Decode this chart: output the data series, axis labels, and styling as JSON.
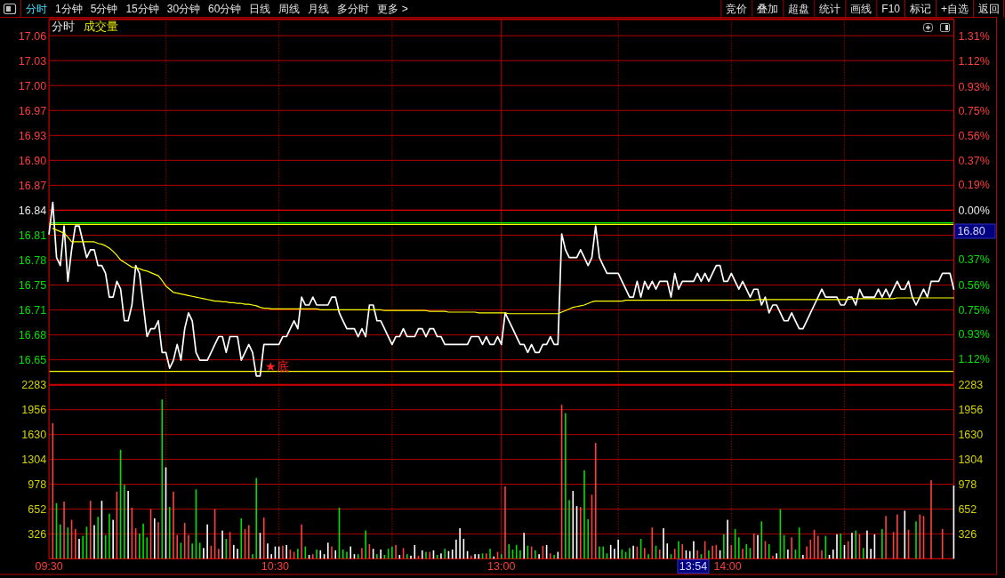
{
  "chart_data": [
    {
      "type": "line",
      "title": "分时",
      "annotations": [
        "分时",
        "1分钟",
        "5分钟",
        "15分钟",
        "30分钟",
        "60分钟",
        "日线",
        "周线",
        "月线",
        "多分时",
        "更多 >",
        "竞价",
        "叠加",
        "超盘",
        "统计",
        "画线",
        "F10",
        "标记",
        "+自选",
        "返回",
        "16.80",
        "★底"
      ],
      "categories": [
        null,
        null,
        null,
        null,
        null,
        null,
        null,
        null,
        null,
        null,
        null,
        null,
        null,
        null,
        null,
        null,
        null,
        null,
        null,
        null,
        null,
        null,
        null,
        null,
        null,
        null,
        null,
        null,
        null,
        null,
        null,
        null,
        null,
        null,
        null,
        null,
        null,
        null,
        null,
        null,
        null,
        null,
        null,
        null,
        null,
        null,
        null,
        null,
        null,
        null,
        null,
        null,
        null,
        null,
        null,
        null,
        null,
        null,
        null,
        null,
        null,
        null,
        null,
        null,
        null,
        null,
        null,
        null,
        null,
        null,
        null,
        null,
        null,
        null,
        null,
        null,
        null,
        null,
        null,
        null,
        null,
        null,
        null,
        null,
        null,
        null,
        null,
        null,
        null,
        null,
        null,
        null,
        null,
        null,
        null,
        null,
        null,
        null,
        null,
        null,
        null,
        null,
        null,
        null,
        null,
        null,
        null,
        null,
        null,
        null,
        null,
        null,
        null,
        null,
        null,
        null,
        null,
        null,
        null,
        null,
        null,
        null,
        null,
        null,
        null,
        null,
        null,
        null,
        null,
        null,
        null,
        null,
        null,
        null,
        null,
        null,
        null,
        null,
        null,
        null,
        null,
        null,
        null,
        null,
        null,
        null,
        null,
        null,
        null,
        null,
        null,
        null,
        null,
        null,
        null,
        null,
        null,
        null,
        null,
        null,
        null,
        null,
        null,
        null,
        null,
        null,
        null,
        null,
        null,
        null,
        null,
        null,
        null,
        null,
        null,
        null,
        null,
        null,
        null,
        null,
        null,
        null,
        null,
        null,
        null,
        null,
        null,
        null,
        null,
        null,
        null,
        null,
        null,
        null,
        null,
        null,
        null,
        null,
        null,
        null,
        null,
        null,
        null,
        null,
        null,
        null,
        null,
        null,
        null,
        null,
        null,
        null,
        null,
        null,
        null,
        null,
        null,
        null,
        null,
        null,
        null,
        null,
        null,
        null,
        null,
        null,
        null,
        null,
        null,
        null,
        null,
        null,
        null,
        null,
        null,
        null,
        null,
        null,
        null,
        null,
        null
      ],
      "ylim": [
        16.619,
        17.082
      ],
      "yticks": [
        {
          "value": 17.061,
          "label": "17.06"
        },
        {
          "value": 17.0295,
          "label": "17.03"
        },
        {
          "value": 16.9979,
          "label": "17.00"
        },
        {
          "value": 16.9663,
          "label": "16.97"
        },
        {
          "value": 16.9347,
          "label": "16.93"
        },
        {
          "value": 16.9032,
          "label": "16.90"
        },
        {
          "value": 16.8716,
          "label": "16.87"
        },
        16.84,
        {
          "value": 16.8084,
          "label": "16.81"
        },
        {
          "value": 16.7769,
          "label": "16.78"
        },
        {
          "value": 16.7453,
          "label": "16.75"
        },
        {
          "value": 16.7137,
          "label": "16.71"
        },
        {
          "value": 16.6821,
          "label": "16.68"
        },
        {
          "value": 16.6506,
          "label": "16.65"
        }
      ],
      "y2lim": [
        -1.312,
        1.437
      ],
      "y2ticks": [
        {
          "value": 1.31,
          "label": "1.31%"
        },
        {
          "value": 1.12,
          "label": "1.12%"
        },
        {
          "value": 0.93,
          "label": "0.93%"
        },
        {
          "value": 0.75,
          "label": "0.75%"
        },
        {
          "value": 0.56,
          "label": "0.56%"
        },
        {
          "value": 0.37,
          "label": "0.37%"
        },
        {
          "value": 0.19,
          "label": "0.19%"
        },
        {
          "value": 0,
          "label": "0.00%"
        },
        {
          "value": -0.37,
          "label": "0.37%"
        },
        {
          "value": -0.56,
          "label": "0.56%"
        },
        {
          "value": -0.75,
          "label": "0.75%"
        },
        {
          "value": -0.93,
          "label": "0.93%"
        },
        {
          "value": -1.12,
          "label": "1.12%"
        }
      ],
      "grid": "y",
      "ref_lines": [
        {
          "axis": "y",
          "value": 16.84,
          "color": "#e00000"
        },
        {
          "axis": "y",
          "value": 16.824,
          "color": "#00ff00"
        },
        {
          "axis": "y",
          "value": 16.822,
          "color": "#ffff00"
        },
        {
          "axis": "y",
          "value": 16.636,
          "color": "#ffff00"
        }
      ],
      "series": [
        {
          "color": "#ffffff",
          "values": [
            16.81,
            16.85,
            16.78,
            16.77,
            16.82,
            16.75,
            16.79,
            16.82,
            16.82,
            16.8,
            16.78,
            16.79,
            16.79,
            16.77,
            16.77,
            16.76,
            16.73,
            16.73,
            16.75,
            16.74,
            16.7,
            16.7,
            16.72,
            16.77,
            16.76,
            16.72,
            16.68,
            16.69,
            16.69,
            16.7,
            16.66,
            16.66,
            16.64,
            16.65,
            16.67,
            16.65,
            16.69,
            16.71,
            16.7,
            16.66,
            16.65,
            16.65,
            16.65,
            16.66,
            16.67,
            16.68,
            16.68,
            16.66,
            16.68,
            16.68,
            16.68,
            16.65,
            16.66,
            16.67,
            16.66,
            16.63,
            16.63,
            16.67,
            16.67,
            16.67,
            16.67,
            16.67,
            16.68,
            16.68,
            16.69,
            16.7,
            16.69,
            16.73,
            16.72,
            16.72,
            16.73,
            16.72,
            16.72,
            16.72,
            16.72,
            16.73,
            16.73,
            16.71,
            16.7,
            16.69,
            16.69,
            16.69,
            16.68,
            16.69,
            16.68,
            16.72,
            16.72,
            16.7,
            16.7,
            16.69,
            16.68,
            16.67,
            16.68,
            16.68,
            16.69,
            16.68,
            16.68,
            16.68,
            16.69,
            16.69,
            16.68,
            16.69,
            16.69,
            16.68,
            16.68,
            16.67,
            16.67,
            16.67,
            16.67,
            16.67,
            16.67,
            16.67,
            16.68,
            16.68,
            16.68,
            16.67,
            16.68,
            16.67,
            16.67,
            16.68,
            16.67,
            16.71,
            16.7,
            16.69,
            16.68,
            16.67,
            16.67,
            16.66,
            16.67,
            16.66,
            16.66,
            16.67,
            16.67,
            16.68,
            16.67,
            16.67,
            16.81,
            16.79,
            16.78,
            16.78,
            16.78,
            16.79,
            16.78,
            16.77,
            16.78,
            16.82,
            16.78,
            16.77,
            16.76,
            16.76,
            16.76,
            16.76,
            16.75,
            16.74,
            16.73,
            16.73,
            16.75,
            16.73,
            16.75,
            16.74,
            16.75,
            16.74,
            16.75,
            16.75,
            16.75,
            16.73,
            16.76,
            16.74,
            16.75,
            16.75,
            16.75,
            16.75,
            16.76,
            16.75,
            16.76,
            16.75,
            16.76,
            16.77,
            16.77,
            16.75,
            16.75,
            16.76,
            16.75,
            16.74,
            16.75,
            16.74,
            16.73,
            16.74,
            16.74,
            16.72,
            16.73,
            16.71,
            16.72,
            16.72,
            16.71,
            16.7,
            16.7,
            16.71,
            16.7,
            16.69,
            16.69,
            16.7,
            16.71,
            16.72,
            16.73,
            16.74,
            16.73,
            16.73,
            16.73,
            16.73,
            16.72,
            16.72,
            16.73,
            16.73,
            16.72,
            16.74,
            16.73,
            16.73,
            16.73,
            16.73,
            16.74,
            16.73,
            16.74,
            16.73,
            16.74,
            16.75,
            16.74,
            16.74,
            16.75,
            16.73,
            16.72,
            16.73,
            16.74,
            16.73,
            16.75,
            16.75,
            16.75,
            16.76,
            16.76,
            16.76,
            16.74
          ]
        },
        {
          "color": "#ffff00",
          "values": [
            null,
            16.817,
            16.815,
            16.813,
            16.811,
            16.806,
            16.8,
            16.8,
            16.8,
            16.8,
            16.8,
            16.8,
            16.8,
            16.798,
            16.797,
            16.795,
            16.792,
            16.788,
            16.783,
            16.777,
            16.774,
            16.771,
            16.768,
            16.767,
            16.766,
            16.764,
            16.763,
            16.761,
            16.759,
            16.757,
            16.751,
            16.744,
            16.74,
            16.736,
            16.735,
            16.734,
            16.733,
            16.732,
            16.731,
            16.73,
            16.729,
            16.728,
            16.727,
            16.726,
            16.725,
            16.725,
            16.724,
            16.724,
            16.723,
            16.723,
            16.722,
            16.722,
            16.721,
            16.721,
            16.72,
            16.719,
            16.717,
            16.716,
            16.716,
            16.715,
            16.715,
            16.715,
            16.715,
            16.715,
            16.715,
            16.715,
            16.715,
            16.715,
            16.715,
            16.715,
            16.715,
            16.715,
            16.714,
            16.714,
            16.714,
            16.714,
            16.714,
            16.714,
            16.714,
            16.714,
            16.714,
            16.714,
            16.714,
            16.714,
            16.714,
            16.714,
            16.714,
            16.714,
            16.714,
            16.713,
            16.713,
            16.713,
            16.713,
            16.713,
            16.713,
            16.713,
            16.713,
            16.713,
            16.713,
            16.713,
            16.713,
            16.712,
            16.712,
            16.712,
            16.712,
            16.712,
            16.711,
            16.711,
            16.711,
            16.711,
            16.711,
            16.711,
            16.711,
            16.711,
            16.71,
            16.71,
            16.71,
            16.71,
            16.71,
            16.71,
            16.71,
            16.71,
            16.709,
            16.709,
            16.709,
            16.709,
            16.709,
            16.709,
            16.709,
            16.709,
            16.709,
            16.709,
            16.709,
            16.709,
            16.709,
            16.709,
            16.711,
            16.713,
            16.715,
            16.717,
            16.718,
            16.719,
            16.72,
            16.722,
            16.724,
            16.725,
            16.725,
            16.725,
            16.725,
            16.725,
            16.725,
            16.725,
            16.725,
            16.726,
            16.726,
            16.726,
            16.726,
            16.726,
            16.726,
            16.726,
            16.726,
            16.726,
            16.726,
            16.726,
            16.726,
            16.726,
            16.726,
            16.726,
            16.726,
            16.726,
            16.726,
            16.726,
            16.726,
            16.726,
            16.726,
            16.726,
            16.726,
            16.726,
            16.726,
            16.726,
            16.726,
            16.726,
            16.726,
            16.726,
            16.726,
            16.726,
            16.726,
            16.726,
            16.727,
            16.727,
            16.727,
            16.727,
            16.727,
            16.727,
            16.727,
            16.727,
            16.727,
            16.727,
            16.727,
            16.727,
            16.727,
            16.727,
            16.727,
            16.727,
            16.727,
            16.727,
            16.727,
            16.727,
            16.727,
            16.727,
            16.727,
            16.727,
            16.727,
            16.728,
            16.728,
            16.728,
            16.728,
            16.728,
            16.728,
            16.728,
            16.728,
            16.728,
            16.728,
            16.728,
            16.728,
            16.729,
            16.729,
            16.729,
            16.729,
            16.729,
            16.729,
            16.729,
            16.729,
            16.729,
            16.729,
            16.729,
            16.729,
            16.729,
            16.729,
            16.729,
            16.729
          ]
        }
      ]
    },
    {
      "type": "bar",
      "title": "成交量",
      "categories": [
        "09:30",
        null,
        null,
        null,
        null,
        null,
        null,
        null,
        null,
        null,
        null,
        null,
        null,
        null,
        null,
        null,
        null,
        null,
        null,
        null,
        null,
        null,
        null,
        null,
        null,
        null,
        null,
        null,
        null,
        null,
        null,
        null,
        null,
        null,
        null,
        null,
        null,
        null,
        null,
        null,
        null,
        null,
        null,
        null,
        null,
        null,
        null,
        null,
        null,
        null,
        null,
        null,
        null,
        null,
        null,
        null,
        null,
        null,
        null,
        null,
        "10:30",
        null,
        null,
        null,
        null,
        null,
        null,
        null,
        null,
        null,
        null,
        null,
        null,
        null,
        null,
        null,
        null,
        null,
        null,
        null,
        null,
        null,
        null,
        null,
        null,
        null,
        null,
        null,
        null,
        null,
        null,
        null,
        null,
        null,
        null,
        null,
        null,
        null,
        null,
        null,
        null,
        null,
        null,
        null,
        null,
        null,
        null,
        null,
        null,
        null,
        null,
        null,
        null,
        null,
        null,
        null,
        null,
        null,
        null,
        null,
        "13:00",
        null,
        null,
        null,
        null,
        null,
        null,
        null,
        null,
        null,
        null,
        null,
        null,
        null,
        null,
        null,
        null,
        null,
        null,
        null,
        null,
        null,
        null,
        null,
        null,
        null,
        null,
        null,
        null,
        null,
        null,
        null,
        null,
        null,
        null,
        null,
        null,
        null,
        null,
        null,
        null,
        null,
        null,
        null,
        null,
        null,
        null,
        null,
        null,
        null,
        null,
        null,
        null,
        null,
        null,
        null,
        null,
        null,
        null,
        null,
        "14:00",
        null,
        null,
        null,
        null,
        null,
        null,
        null,
        null,
        null,
        null,
        null,
        null,
        null,
        null,
        null,
        null,
        null,
        null,
        null,
        null,
        null,
        null,
        null,
        null,
        null,
        null,
        null,
        null,
        null,
        null,
        null,
        null,
        null,
        null,
        null,
        null,
        null,
        null,
        null,
        null,
        null,
        null,
        null,
        null,
        null,
        null,
        null,
        null,
        null,
        null,
        null,
        null,
        null,
        null,
        null,
        null,
        null,
        null,
        null,
        null
      ],
      "values": [
        null,
        1780,
        730,
        450,
        750,
        410,
        510,
        390,
        260,
        300,
        420,
        760,
        440,
        550,
        760,
        310,
        590,
        510,
        880,
        1430,
        970,
        890,
        670,
        400,
        330,
        460,
        280,
        650,
        530,
        480,
        2090,
        1200,
        680,
        880,
        310,
        210,
        470,
        310,
        200,
        910,
        210,
        140,
        450,
        170,
        650,
        130,
        370,
        260,
        350,
        180,
        130,
        530,
        390,
        440,
        60,
        1060,
        340,
        540,
        200,
        60,
        160,
        160,
        170,
        180,
        120,
        90,
        130,
        450,
        160,
        50,
        60,
        120,
        110,
        60,
        210,
        160,
        110,
        670,
        120,
        90,
        160,
        60,
        60,
        140,
        370,
        190,
        130,
        60,
        120,
        50,
        130,
        160,
        180,
        50,
        140,
        60,
        40,
        180,
        40,
        110,
        90,
        90,
        110,
        50,
        70,
        130,
        100,
        120,
        250,
        400,
        260,
        100,
        40,
        60,
        60,
        70,
        70,
        130,
        30,
        90,
        60,
        950,
        190,
        120,
        180,
        110,
        340,
        170,
        160,
        110,
        60,
        170,
        180,
        70,
        50,
        90,
        2020,
        1910,
        770,
        890,
        690,
        680,
        1160,
        520,
        840,
        1520,
        160,
        160,
        70,
        180,
        130,
        250,
        120,
        90,
        140,
        170,
        160,
        260,
        140,
        60,
        410,
        170,
        120,
        400,
        200,
        60,
        130,
        230,
        190,
        110,
        100,
        230,
        110,
        60,
        230,
        110,
        170,
        180,
        110,
        320,
        510,
        180,
        390,
        280,
        130,
        190,
        140,
        330,
        310,
        490,
        230,
        190,
        40,
        70,
        650,
        310,
        120,
        280,
        120,
        410,
        50,
        160,
        250,
        380,
        300,
        110,
        300,
        50,
        120,
        320,
        330,
        180,
        230,
        340,
        370,
        320,
        140,
        370,
        130,
        320,
        null,
        390,
        560,
        null,
        350,
        580,
        null,
        630,
        380,
        null,
        490,
        580,
        560,
        null,
        1030,
        null,
        null,
        390,
        null,
        null,
        960
      ],
      "colors": [
        null,
        "#ff4040",
        "#00e000",
        "#00e000",
        "#ff4040",
        "#00e000",
        "#ff4040",
        "#ff4040",
        "#ffffff",
        "#00e000",
        "#00e000",
        "#ff4040",
        "#ffffff",
        "#00e000",
        "#ffffff",
        "#00e000",
        "#00e000",
        "#ffffff",
        "#ff4040",
        "#00e000",
        "#00e000",
        "#ffffff",
        "#ff4040",
        "#ff4040",
        "#00e000",
        "#00e000",
        "#00e000",
        "#ff4040",
        "#ffffff",
        "#ff4040",
        "#00e000",
        "#ffffff",
        "#00e000",
        "#ff4040",
        "#ff4040",
        "#00e000",
        "#ff4040",
        "#ff4040",
        "#00e000",
        "#00e000",
        "#00e000",
        "#ffffff",
        "#ffffff",
        "#ff4040",
        "#ff4040",
        "#ff4040",
        "#ffffff",
        "#00e000",
        "#ff4040",
        "#ffffff",
        "#ffffff",
        "#00e000",
        "#ff4040",
        "#ff4040",
        "#00e000",
        "#00e000",
        "#ffffff",
        "#ff4040",
        "#ffffff",
        "#ffffff",
        "#ffffff",
        "#ffffff",
        "#ff4040",
        "#ffffff",
        "#ff4040",
        "#ff4040",
        "#00e000",
        "#ff4040",
        "#00e000",
        "#ffffff",
        "#ff4040",
        "#00e000",
        "#ffffff",
        "#ffffff",
        "#ffffff",
        "#ff4040",
        "#ffffff",
        "#00e000",
        "#00e000",
        "#00e000",
        "#ffffff",
        "#ffffff",
        "#00e000",
        "#ff4040",
        "#00e000",
        "#ff4040",
        "#ffffff",
        "#00e000",
        "#ffffff",
        "#00e000",
        "#00e000",
        "#00e000",
        "#ff4040",
        "#ffffff",
        "#ff4040",
        "#00e000",
        "#ffffff",
        "#ffffff",
        "#ff4040",
        "#ffffff",
        "#00e000",
        "#ff4040",
        "#ffffff",
        "#00e000",
        "#ffffff",
        "#00e000",
        "#ffffff",
        "#ffffff",
        "#ffffff",
        "#ffffff",
        "#ffffff",
        "#ffffff",
        "#ff4040",
        "#ffffff",
        "#ffffff",
        "#00e000",
        "#ff4040",
        "#00e000",
        "#ffffff",
        "#ff4040",
        "#00e000",
        "#ff4040",
        "#00e000",
        "#00e000",
        "#00e000",
        "#00e000",
        "#ffffff",
        "#00e000",
        "#ff4040",
        "#00e000",
        "#ffffff",
        "#ff4040",
        "#ffffff",
        "#ff4040",
        "#00e000",
        "#ffffff",
        "#ff4040",
        "#00e000",
        "#00e000",
        "#ffffff",
        "#ffffff",
        "#ff4040",
        "#00e000",
        "#00e000",
        "#ff4040",
        "#ff4040",
        "#00e000",
        "#00e000",
        "#00e000",
        "#ffffff",
        "#ffffff",
        "#ffffff",
        "#00e000",
        "#00e000",
        "#00e000",
        "#ffffff",
        "#ff4040",
        "#00e000",
        "#ff4040",
        "#00e000",
        "#ff4040",
        "#00e000",
        "#ff4040",
        "#ffffff",
        "#ffffff",
        "#00e000",
        "#ff4040",
        "#00e000",
        "#ff4040",
        "#ffffff",
        "#ffffff",
        "#ffffff",
        "#ff4040",
        "#00e000",
        "#ff4040",
        "#00e000",
        "#ff4040",
        "#ff4040",
        "#ffffff",
        "#00e000",
        "#ffffff",
        "#ff4040",
        "#00e000",
        "#00e000",
        "#ff4040",
        "#00e000",
        "#00e000",
        "#ff4040",
        "#ffffff",
        "#00e000",
        "#ff4040",
        "#00e000",
        "#ff4040",
        "#ffffff",
        "#00e000",
        "#00e000",
        "#ffffff",
        "#ff4040",
        "#00e000",
        "#00e000",
        "#ffffff",
        "#ff4040",
        "#ff4040",
        "#ff4040",
        "#ff4040",
        "#ff4040",
        "#00e000",
        "#ffffff",
        "#ffffff",
        "#ffffff",
        "#00e000",
        "#ffffff",
        "#ff4040",
        "#ffffff",
        "#00e000",
        "#ff4040",
        "#00e000",
        "#ffffff",
        "#ffffff",
        "#ffffff",
        null,
        "#00e000",
        "#ff4040",
        null,
        "#ff4040",
        "#ff4040",
        null,
        "#ffffff",
        "#ff4040",
        null,
        "#00e000",
        "#ff4040",
        "#ff4040",
        null,
        "#ff4040",
        null,
        null,
        "#ff4040",
        null,
        null,
        "#ffffff"
      ],
      "ylim": [
        0,
        2283
      ],
      "yticks": [
        326,
        652,
        978,
        1304,
        1630,
        1956,
        2283
      ],
      "y2lim": [
        0,
        2283
      ],
      "y2ticks": [
        326,
        652,
        978,
        1304,
        1630,
        1956,
        2283
      ],
      "grid": "y",
      "annotations": [
        "13:54"
      ]
    }
  ]
}
